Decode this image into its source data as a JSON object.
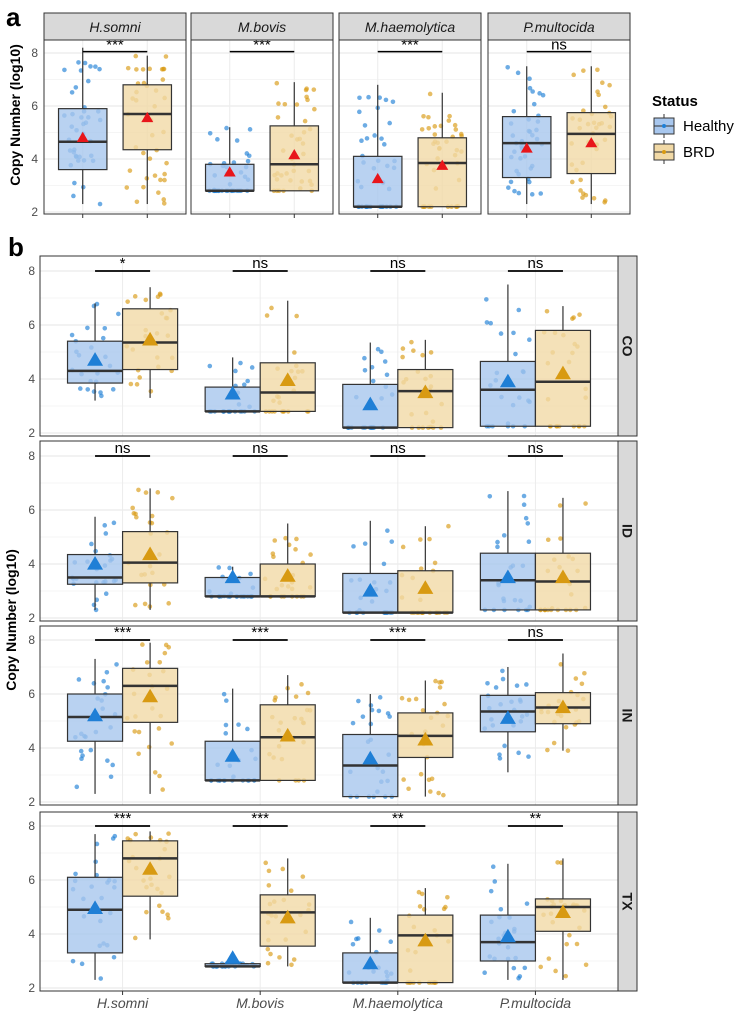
{
  "colors": {
    "healthy_fill": "#a8c7ee",
    "healthy_point": "#1f7fd6",
    "brd_fill": "#f1d9a6",
    "brd_point": "#d89a12",
    "mean_a": "#e8161b",
    "strip": "#d9d9d9"
  },
  "chart_data": [
    {
      "type": "box",
      "panel_label": "a",
      "ylabel": "Copy Number (log10)",
      "ylim": [
        2,
        8.4
      ],
      "yticks": [
        2,
        4,
        6,
        8
      ],
      "legend": {
        "title": "Status",
        "entries": [
          "Healthy",
          "BRD"
        ],
        "placement": "right"
      },
      "facets": [
        {
          "name": "H.somni",
          "sig": "***",
          "groups": [
            {
              "status": "Healthy",
              "min": 2.3,
              "q1": 3.6,
              "median": 4.65,
              "q3": 5.9,
              "max": 8.2,
              "mean": 4.8
            },
            {
              "status": "BRD",
              "min": 2.3,
              "q1": 4.35,
              "median": 5.7,
              "q3": 6.8,
              "max": 7.9,
              "mean": 5.55
            }
          ]
        },
        {
          "name": "M.bovis",
          "sig": "***",
          "groups": [
            {
              "status": "Healthy",
              "min": 2.8,
              "q1": 2.8,
              "median": 2.8,
              "q3": 3.8,
              "max": 5.2,
              "mean": 3.5
            },
            {
              "status": "BRD",
              "min": 2.8,
              "q1": 2.8,
              "median": 3.8,
              "q3": 5.25,
              "max": 6.9,
              "mean": 4.15
            }
          ]
        },
        {
          "name": "M.haemolytica",
          "sig": "***",
          "groups": [
            {
              "status": "Healthy",
              "min": 2.2,
              "q1": 2.2,
              "median": 2.2,
              "q3": 4.1,
              "max": 6.8,
              "mean": 3.25
            },
            {
              "status": "BRD",
              "min": 2.2,
              "q1": 2.2,
              "median": 3.85,
              "q3": 4.8,
              "max": 6.5,
              "mean": 3.75
            }
          ]
        },
        {
          "name": "P.multocida",
          "sig": "ns",
          "groups": [
            {
              "status": "Healthy",
              "min": 2.3,
              "q1": 3.3,
              "median": 4.6,
              "q3": 5.6,
              "max": 7.5,
              "mean": 4.4
            },
            {
              "status": "BRD",
              "min": 2.3,
              "q1": 3.45,
              "median": 4.95,
              "q3": 5.75,
              "max": 7.5,
              "mean": 4.6
            }
          ]
        }
      ]
    },
    {
      "type": "box",
      "panel_label": "b",
      "ylabel": "Copy Number (log10)",
      "ylim": [
        2,
        8.4
      ],
      "yticks": [
        2,
        4,
        6,
        8
      ],
      "categories": [
        "H.somni",
        "M.bovis",
        "M.haemolytica",
        "P.multocida"
      ],
      "rows": [
        {
          "name": "CO",
          "cells": [
            {
              "sig": "*",
              "H": [
                3.2,
                3.85,
                4.3,
                5.4,
                6.8,
                4.7
              ],
              "B": [
                3.3,
                4.35,
                5.35,
                6.6,
                7.4,
                5.45
              ]
            },
            {
              "sig": "ns",
              "H": [
                2.8,
                2.8,
                2.8,
                3.7,
                4.8,
                3.45
              ],
              "B": [
                2.8,
                2.8,
                3.5,
                4.6,
                6.9,
                3.95
              ]
            },
            {
              "sig": "ns",
              "H": [
                2.2,
                2.2,
                2.2,
                3.8,
                5.35,
                3.05
              ],
              "B": [
                2.2,
                2.2,
                3.55,
                4.35,
                5.45,
                3.5
              ]
            },
            {
              "sig": "ns",
              "H": [
                2.25,
                2.25,
                3.6,
                4.65,
                7.5,
                3.9
              ],
              "B": [
                2.25,
                2.25,
                3.9,
                5.8,
                6.7,
                4.2
              ]
            }
          ]
        },
        {
          "name": "ID",
          "cells": [
            {
              "sig": "ns",
              "H": [
                2.3,
                3.25,
                3.5,
                4.35,
                5.75,
                4.0
              ],
              "B": [
                2.3,
                3.3,
                4.05,
                5.2,
                6.8,
                4.35
              ]
            },
            {
              "sig": "ns",
              "H": [
                2.8,
                2.8,
                2.8,
                3.5,
                3.9,
                3.5
              ],
              "B": [
                2.8,
                2.8,
                2.8,
                4.0,
                5.5,
                3.55
              ]
            },
            {
              "sig": "ns",
              "H": [
                2.2,
                2.2,
                2.2,
                3.65,
                5.6,
                3.0
              ],
              "B": [
                2.2,
                2.2,
                2.2,
                3.75,
                5.4,
                3.1
              ]
            },
            {
              "sig": "ns",
              "H": [
                2.3,
                2.3,
                3.4,
                4.4,
                6.7,
                3.5
              ],
              "B": [
                2.3,
                2.3,
                3.35,
                4.4,
                6.45,
                3.5
              ]
            }
          ]
        },
        {
          "name": "IN",
          "cells": [
            {
              "sig": "***",
              "H": [
                2.3,
                4.25,
                5.15,
                6.0,
                7.3,
                5.2
              ],
              "B": [
                2.3,
                4.95,
                6.3,
                6.95,
                7.9,
                5.9
              ]
            },
            {
              "sig": "***",
              "H": [
                2.8,
                2.8,
                2.8,
                4.25,
                6.2,
                3.7
              ],
              "B": [
                2.8,
                2.8,
                4.4,
                5.6,
                6.7,
                4.45
              ]
            },
            {
              "sig": "***",
              "H": [
                2.2,
                2.2,
                3.35,
                4.5,
                6.0,
                3.6
              ],
              "B": [
                2.2,
                3.65,
                4.45,
                5.3,
                6.5,
                4.3
              ]
            },
            {
              "sig": "ns",
              "H": [
                3.1,
                4.6,
                5.35,
                5.95,
                7.0,
                5.1
              ],
              "B": [
                3.9,
                4.9,
                5.5,
                6.05,
                7.5,
                5.5
              ]
            }
          ]
        },
        {
          "name": "TX",
          "cells": [
            {
              "sig": "***",
              "H": [
                2.3,
                3.3,
                4.9,
                6.1,
                7.7,
                4.95
              ],
              "B": [
                3.8,
                5.4,
                6.8,
                7.45,
                7.8,
                6.4
              ]
            },
            {
              "sig": "***",
              "H": [
                2.8,
                2.8,
                2.8,
                2.9,
                2.9,
                3.1
              ],
              "B": [
                2.8,
                3.55,
                4.8,
                5.45,
                6.8,
                4.6
              ]
            },
            {
              "sig": "**",
              "H": [
                2.2,
                2.2,
                2.2,
                3.3,
                4.6,
                2.9
              ],
              "B": [
                2.2,
                2.2,
                3.95,
                4.7,
                5.7,
                3.75
              ]
            },
            {
              "sig": "**",
              "H": [
                2.3,
                3.0,
                3.7,
                4.7,
                6.6,
                3.9
              ],
              "B": [
                2.3,
                4.1,
                5.0,
                5.3,
                6.8,
                4.8
              ]
            }
          ]
        }
      ],
      "stat_order": [
        "min",
        "q1",
        "median",
        "q3",
        "max",
        "mean"
      ]
    }
  ]
}
